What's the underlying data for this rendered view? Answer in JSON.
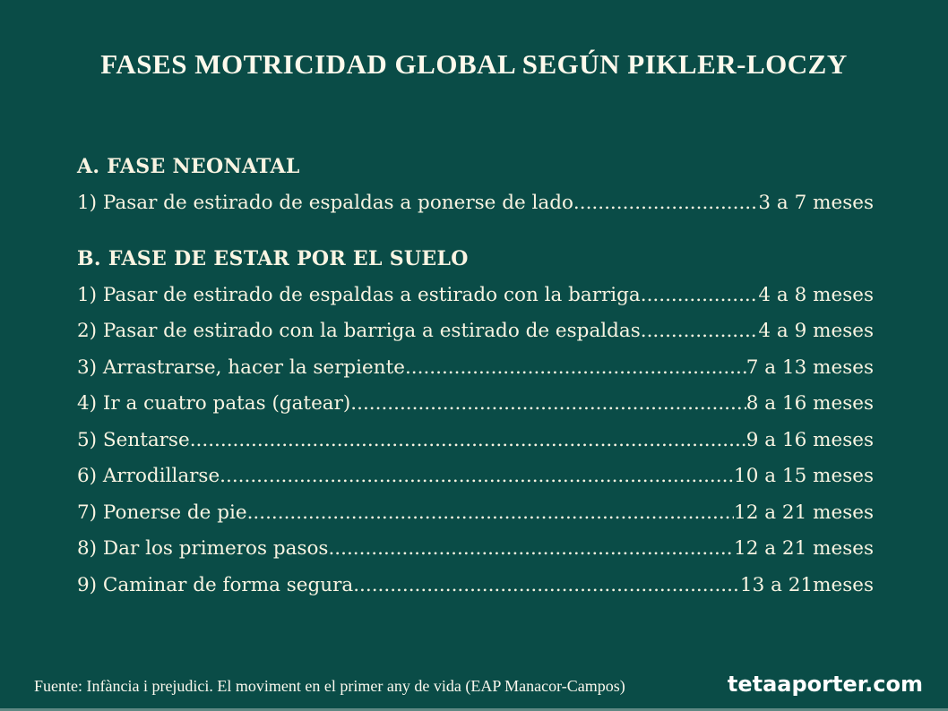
{
  "page": {
    "title": "FASES MOTRICIDAD GLOBAL SEGÚN PIKLER-LOCZY"
  },
  "colors": {
    "background": "#0a4c47",
    "text_cream": "#f9f4e2",
    "title_white": "#fdf9ec",
    "bottom_edge": "#5e8883"
  },
  "leader_dots": "................................................................................................................................................................",
  "sections": [
    {
      "heading": "A. FASE NEONATAL",
      "items": [
        {
          "label": "1) Pasar de estirado de espaldas a ponerse de lado",
          "value": "3 a 7 meses"
        }
      ]
    },
    {
      "heading": "B. FASE DE ESTAR POR EL SUELO",
      "items": [
        {
          "label": "1) Pasar de estirado de espaldas a estirado con la barriga",
          "value": "4 a 8 meses"
        },
        {
          "label": "2) Pasar de estirado con la barriga a estirado de espaldas.",
          "value": "4 a 9 meses"
        },
        {
          "label": "3) Arrastrarse, hacer la serpiente",
          "value": "7 a 13 meses"
        },
        {
          "label": "4) Ir a cuatro patas (gatear)",
          "value": "8 a 16 meses"
        },
        {
          "label": "5) Sentarse",
          "value": "9 a 16 meses"
        },
        {
          "label": "6) Arrodillarse.",
          "value": "10 a 15 meses"
        },
        {
          "label": "7) Ponerse de pie",
          "value": "12 a 21 meses"
        },
        {
          "label": "8) Dar los primeros pasos",
          "value": "12 a 21 meses"
        },
        {
          "label": "9) Caminar de forma segura",
          "value": "13 a 21meses"
        }
      ]
    }
  ],
  "footer": {
    "source": "Fuente: Infància i prejudici. El moviment en el primer any de vida (EAP Manacor-Campos)",
    "brand": "tetaaporter.com"
  }
}
